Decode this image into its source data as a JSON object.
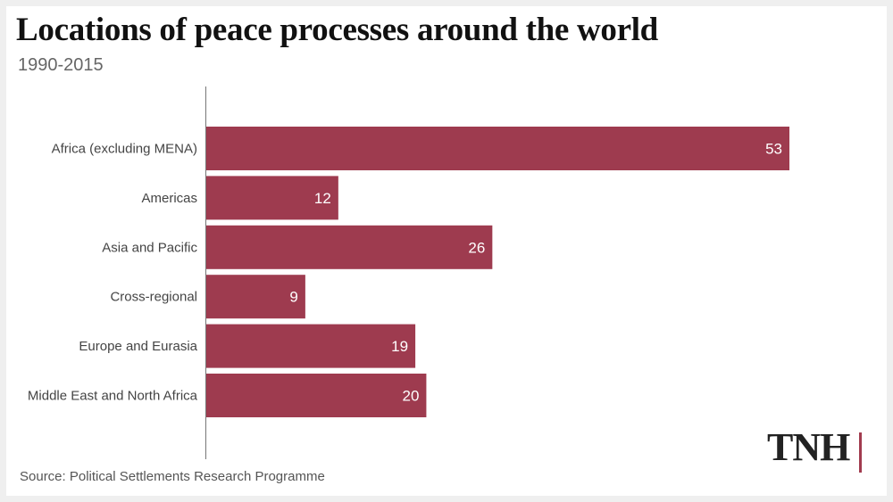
{
  "title": "Locations of peace processes around the world",
  "subtitle": "1990-2015",
  "source": "Source: Political Settlements Research Programme",
  "logo": "TNH",
  "colors": {
    "bar": "#9e3b4f",
    "logo_accent": "#a13b4f"
  },
  "chart_data": {
    "type": "bar",
    "orientation": "horizontal",
    "title": "Locations of peace processes around the world",
    "subtitle": "1990-2015",
    "categories": [
      "Africa (excluding MENA)",
      "Americas",
      "Asia and Pacific",
      "Cross-regional",
      "Europe and Eurasia",
      "Middle East and North Africa"
    ],
    "values": [
      53,
      12,
      26,
      9,
      19,
      20
    ],
    "xlim": [
      0,
      53
    ],
    "grid": false,
    "data_labels": true
  }
}
